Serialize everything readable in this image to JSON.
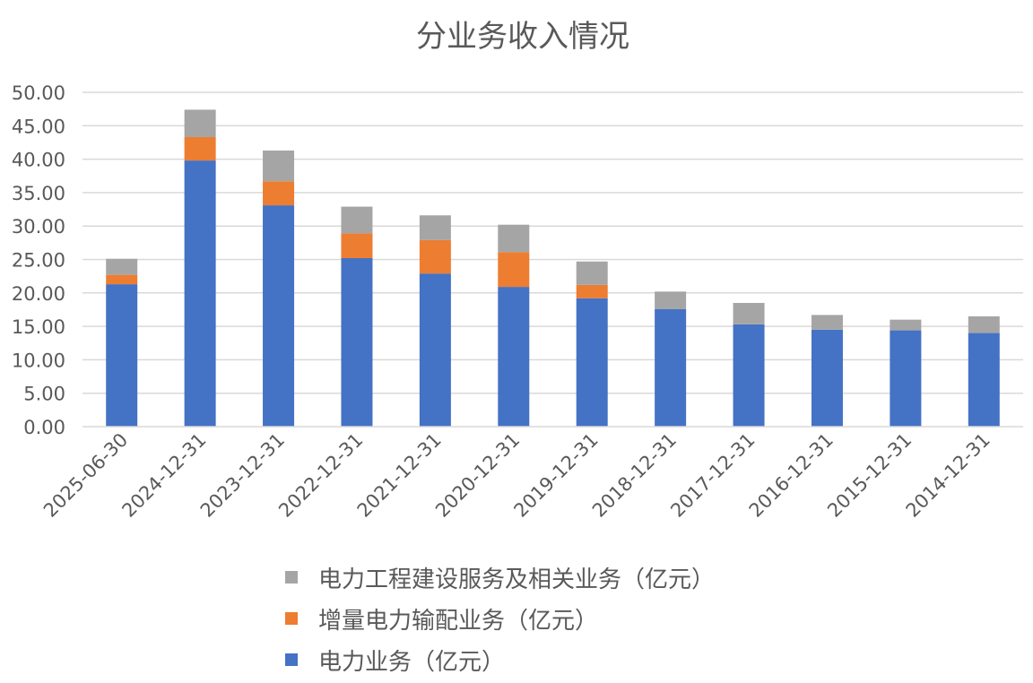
{
  "chart_data": {
    "type": "bar",
    "stacked": true,
    "title": "分业务收入情况",
    "categories": [
      "2025-06-30",
      "2024-12-31",
      "2023-12-31",
      "2022-12-31",
      "2021-12-31",
      "2020-12-31",
      "2019-12-31",
      "2018-12-31",
      "2017-12-31",
      "2016-12-31",
      "2015-12-31",
      "2014-12-31"
    ],
    "y_tick_labels": [
      "0.00",
      "5.00",
      "10.00",
      "15.00",
      "20.00",
      "25.00",
      "30.00",
      "35.00",
      "40.00",
      "45.00",
      "50.00"
    ],
    "ylim": [
      0,
      50
    ],
    "grid": true,
    "legend_position": "bottom",
    "series": [
      {
        "name": "电力业务（亿元）",
        "color": "#4472C4",
        "values": [
          21.3,
          39.8,
          33.1,
          25.2,
          22.9,
          20.9,
          19.2,
          17.6,
          15.3,
          14.5,
          14.4,
          14.0
        ]
      },
      {
        "name": "增量电力输配业务（亿元）",
        "color": "#ED7D31",
        "values": [
          1.4,
          3.5,
          3.6,
          3.7,
          5.0,
          5.2,
          2.0,
          0,
          0,
          0,
          0,
          0
        ]
      },
      {
        "name": "电力工程建设服务及相关业务（亿元）",
        "color": "#A5A5A5",
        "values": [
          2.4,
          4.1,
          4.6,
          4.0,
          3.7,
          4.1,
          3.5,
          2.6,
          3.2,
          2.2,
          1.6,
          2.5
        ]
      }
    ],
    "legend_order": [
      2,
      1,
      0
    ]
  }
}
